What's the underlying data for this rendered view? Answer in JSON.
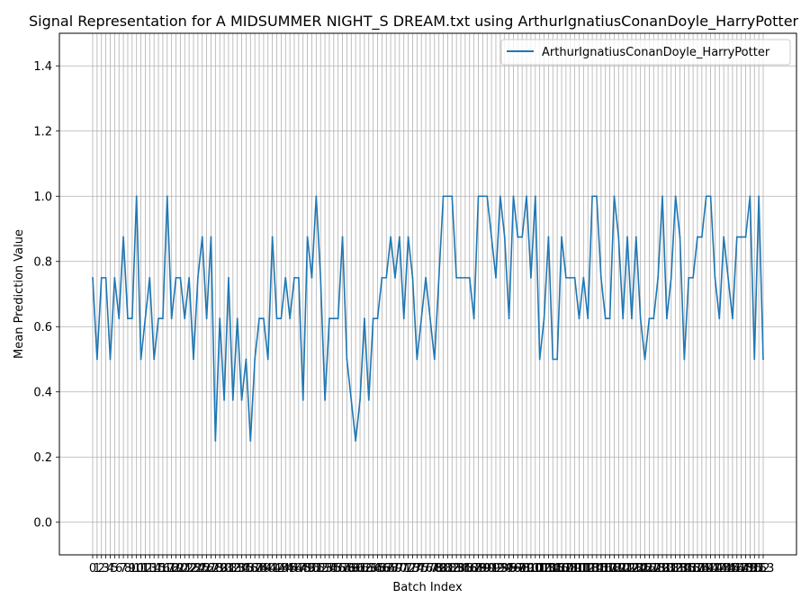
{
  "chart_data": {
    "type": "line",
    "title": "Signal Representation for A MIDSUMMER NIGHT_S DREAM.txt using ArthurIgnatiusConanDoyle_HarryPotter",
    "xlabel": "Batch Index",
    "ylabel": "Mean Prediction Value",
    "ylim": [
      -0.1,
      1.5
    ],
    "yticks": [
      0.0,
      0.2,
      0.4,
      0.6,
      0.8,
      1.0,
      1.2,
      1.4
    ],
    "grid": true,
    "legend_position": "top-right",
    "series": [
      {
        "name": "ArthurIgnatiusConanDoyle_HarryPotter",
        "color": "#1f77b4",
        "values": [
          0.75,
          0.5,
          0.75,
          0.75,
          0.5,
          0.75,
          0.625,
          0.875,
          0.625,
          0.625,
          1.0,
          0.5,
          0.625,
          0.75,
          0.5,
          0.625,
          0.625,
          1.0,
          0.625,
          0.75,
          0.75,
          0.625,
          0.75,
          0.5,
          0.75,
          0.875,
          0.625,
          0.875,
          0.25,
          0.625,
          0.375,
          0.75,
          0.375,
          0.625,
          0.375,
          0.5,
          0.25,
          0.5,
          0.625,
          0.625,
          0.5,
          0.875,
          0.625,
          0.625,
          0.75,
          0.625,
          0.75,
          0.75,
          0.375,
          0.875,
          0.75,
          1.0,
          0.75,
          0.375,
          0.625,
          0.625,
          0.625,
          0.875,
          0.5,
          0.375,
          0.25,
          0.375,
          0.625,
          0.375,
          0.625,
          0.625,
          0.75,
          0.75,
          0.875,
          0.75,
          0.875,
          0.625,
          0.875,
          0.75,
          0.5,
          0.625,
          0.75,
          0.625,
          0.5,
          0.75,
          1.0,
          1.0,
          1.0,
          0.75,
          0.75,
          0.75,
          0.75,
          0.625,
          1.0,
          1.0,
          1.0,
          0.875,
          0.75,
          1.0,
          0.875,
          0.625,
          1.0,
          0.875,
          0.875,
          1.0,
          0.75,
          1.0,
          0.5,
          0.625,
          0.875,
          0.5,
          0.5,
          0.875,
          0.75,
          0.75,
          0.75,
          0.625,
          0.75,
          0.625,
          1.0,
          1.0,
          0.75,
          0.625,
          0.625,
          1.0,
          0.875,
          0.625,
          0.875,
          0.625,
          0.875,
          0.625,
          0.5,
          0.625,
          0.625,
          0.75,
          1.0,
          0.625,
          0.75,
          1.0,
          0.875,
          0.5,
          0.75,
          0.75,
          0.875,
          0.875,
          1.0,
          1.0,
          0.75,
          0.625,
          0.875,
          0.75,
          0.625,
          0.875,
          0.875,
          0.875,
          1.0,
          0.5,
          1.0,
          0.5
        ]
      }
    ]
  }
}
